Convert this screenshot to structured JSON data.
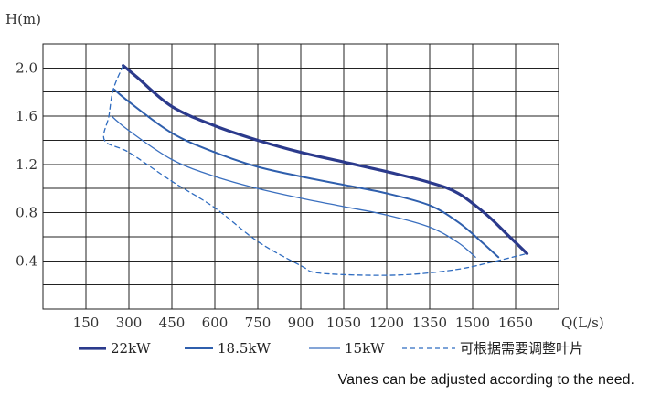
{
  "chart_data": {
    "type": "line",
    "ylabel": "H(m)",
    "xlabel": "Q(L/s)",
    "xticks": [
      150,
      300,
      450,
      600,
      750,
      900,
      1050,
      1200,
      1350,
      1500,
      1650
    ],
    "yticks": [
      0.4,
      0.8,
      1.2,
      1.6,
      2.0
    ],
    "ytick_labels": [
      "0.4",
      "0.8",
      "1.2",
      "1.6",
      "2.0"
    ],
    "xlim": [
      0,
      1800
    ],
    "ylim": [
      0,
      2.2
    ],
    "grid": true,
    "legend_position": "bottom",
    "series": [
      {
        "name": "22kW",
        "style": "thick",
        "color": "#2b3a8c",
        "points": [
          [
            280,
            2.02
          ],
          [
            330,
            1.92
          ],
          [
            450,
            1.68
          ],
          [
            600,
            1.52
          ],
          [
            750,
            1.4
          ],
          [
            900,
            1.3
          ],
          [
            1050,
            1.22
          ],
          [
            1200,
            1.14
          ],
          [
            1350,
            1.05
          ],
          [
            1450,
            0.96
          ],
          [
            1550,
            0.78
          ],
          [
            1620,
            0.62
          ],
          [
            1690,
            0.46
          ]
        ]
      },
      {
        "name": "18.5kW",
        "style": "medium",
        "color": "#2f5fad",
        "points": [
          [
            250,
            1.82
          ],
          [
            300,
            1.72
          ],
          [
            450,
            1.46
          ],
          [
            600,
            1.3
          ],
          [
            750,
            1.18
          ],
          [
            900,
            1.1
          ],
          [
            1050,
            1.03
          ],
          [
            1200,
            0.96
          ],
          [
            1350,
            0.86
          ],
          [
            1450,
            0.72
          ],
          [
            1530,
            0.56
          ],
          [
            1590,
            0.43
          ]
        ]
      },
      {
        "name": "15kW",
        "style": "thin",
        "color": "#3a6fbf",
        "points": [
          [
            240,
            1.6
          ],
          [
            300,
            1.48
          ],
          [
            450,
            1.24
          ],
          [
            600,
            1.1
          ],
          [
            750,
            1.0
          ],
          [
            900,
            0.92
          ],
          [
            1050,
            0.85
          ],
          [
            1200,
            0.78
          ],
          [
            1350,
            0.68
          ],
          [
            1450,
            0.55
          ],
          [
            1510,
            0.43
          ]
        ]
      },
      {
        "name": "可根据需要调整叶片",
        "style": "dashed",
        "color": "#2f6cc0",
        "points": [
          [
            280,
            2.02
          ],
          [
            245,
            1.82
          ],
          [
            230,
            1.6
          ],
          [
            215,
            1.4
          ],
          [
            300,
            1.3
          ],
          [
            450,
            1.06
          ],
          [
            600,
            0.84
          ],
          [
            750,
            0.56
          ],
          [
            900,
            0.36
          ],
          [
            960,
            0.3
          ],
          [
            1150,
            0.28
          ],
          [
            1300,
            0.29
          ],
          [
            1450,
            0.33
          ],
          [
            1550,
            0.38
          ],
          [
            1690,
            0.46
          ]
        ]
      }
    ],
    "note": "Vanes can be adjusted according to the need."
  }
}
